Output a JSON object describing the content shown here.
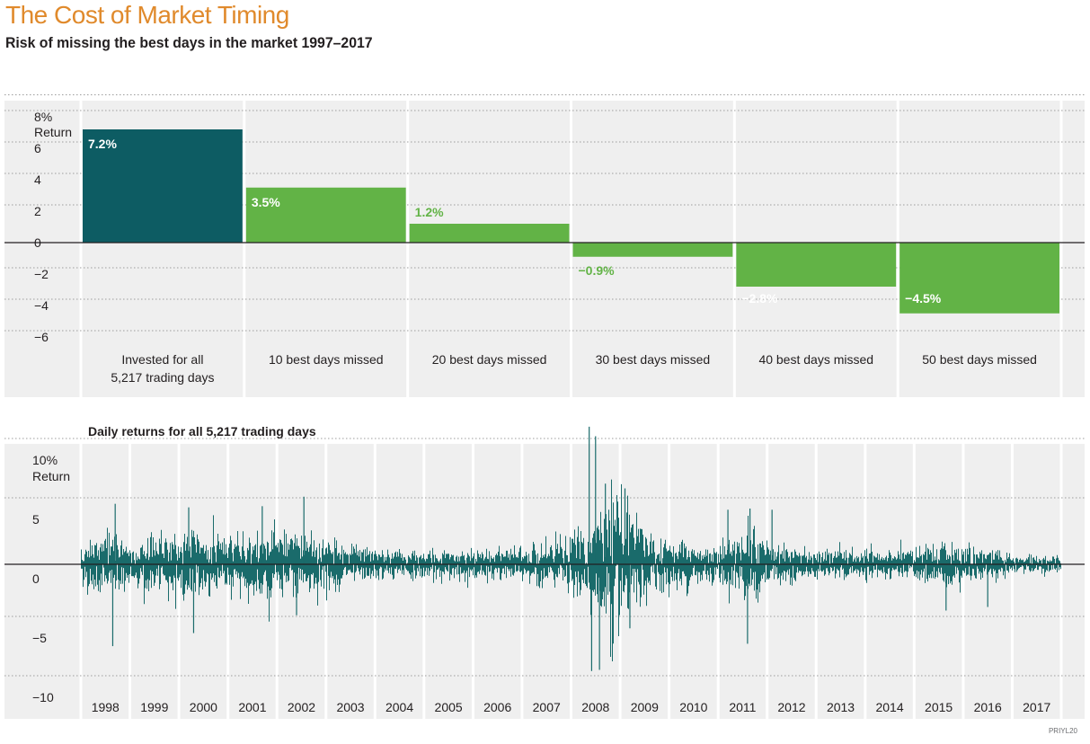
{
  "header": {
    "title": "The Cost of Market Timing",
    "subtitle": "Risk of missing the best days in the market 1997–2017",
    "code": "PRIYL20"
  },
  "colors": {
    "background_panel": "#efefef",
    "dark_bar": "#0d5c63",
    "green_bar": "#62b346",
    "daily_series": "#1a6b6b",
    "title_orange": "#e08a2c"
  },
  "chart_data": [
    {
      "type": "bar",
      "title": "",
      "ylabel": "Return",
      "ylim": [
        -6,
        8
      ],
      "yticks": [
        {
          "value": 8,
          "label": "8%"
        },
        {
          "value": 6,
          "label": "6"
        },
        {
          "value": 4,
          "label": "4"
        },
        {
          "value": 2,
          "label": "2"
        },
        {
          "value": 0,
          "label": "0"
        },
        {
          "value": -2,
          "label": "−2"
        },
        {
          "value": -4,
          "label": "−4"
        },
        {
          "value": -6,
          "label": "−6"
        }
      ],
      "grid": true,
      "categories": [
        [
          "Invested for all",
          "5,217 trading days"
        ],
        [
          "10 best days missed"
        ],
        [
          "20 best days missed"
        ],
        [
          "30 best days missed"
        ],
        [
          "40 best days missed"
        ],
        [
          "50 best days missed"
        ]
      ],
      "values": [
        7.2,
        3.5,
        1.2,
        -0.9,
        -2.8,
        -4.5
      ],
      "value_labels": [
        "7.2%",
        "3.5%",
        "1.2%",
        "−0.9%",
        "−2.8%",
        "−4.5%"
      ]
    },
    {
      "type": "bar",
      "title": "Daily returns for all 5,217 trading days",
      "ylabel": "Return",
      "ylim": [
        -10,
        10
      ],
      "yticks": [
        {
          "value": 10,
          "label": "10%"
        },
        {
          "value": 5,
          "label": "5"
        },
        {
          "value": 0,
          "label": "0"
        },
        {
          "value": -5,
          "label": "−5"
        },
        {
          "value": -10,
          "label": "−10"
        }
      ],
      "grid": true,
      "x_range": [
        1998,
        2018
      ],
      "x_tick_labels": [
        "1998",
        "1999",
        "2000",
        "2001",
        "2002",
        "2003",
        "2004",
        "2005",
        "2006",
        "2007",
        "2008",
        "2009",
        "2010",
        "2011",
        "2012",
        "2013",
        "2014",
        "2015",
        "2016",
        "2017"
      ],
      "volatility_profile": [
        {
          "year": 1998.0,
          "vol": 1.2
        },
        {
          "year": 1998.6,
          "vol": 1.7
        },
        {
          "year": 1999.0,
          "vol": 1.2
        },
        {
          "year": 2000.0,
          "vol": 1.5
        },
        {
          "year": 2000.5,
          "vol": 1.8
        },
        {
          "year": 2001.0,
          "vol": 1.5
        },
        {
          "year": 2001.7,
          "vol": 1.6
        },
        {
          "year": 2002.0,
          "vol": 1.6
        },
        {
          "year": 2002.6,
          "vol": 1.9
        },
        {
          "year": 2003.0,
          "vol": 1.4
        },
        {
          "year": 2003.5,
          "vol": 1.0
        },
        {
          "year": 2004.0,
          "vol": 0.8
        },
        {
          "year": 2005.0,
          "vol": 0.7
        },
        {
          "year": 2006.0,
          "vol": 0.7
        },
        {
          "year": 2007.0,
          "vol": 0.8
        },
        {
          "year": 2007.5,
          "vol": 1.1
        },
        {
          "year": 2008.0,
          "vol": 1.5
        },
        {
          "year": 2008.5,
          "vol": 2.0
        },
        {
          "year": 2008.8,
          "vol": 4.5
        },
        {
          "year": 2009.0,
          "vol": 3.2
        },
        {
          "year": 2009.4,
          "vol": 2.0
        },
        {
          "year": 2010.0,
          "vol": 1.1
        },
        {
          "year": 2010.4,
          "vol": 1.4
        },
        {
          "year": 2010.7,
          "vol": 1.0
        },
        {
          "year": 2011.0,
          "vol": 0.9
        },
        {
          "year": 2011.6,
          "vol": 2.0
        },
        {
          "year": 2012.0,
          "vol": 1.2
        },
        {
          "year": 2012.5,
          "vol": 0.8
        },
        {
          "year": 2013.0,
          "vol": 0.7
        },
        {
          "year": 2014.0,
          "vol": 0.7
        },
        {
          "year": 2015.0,
          "vol": 0.8
        },
        {
          "year": 2015.6,
          "vol": 1.2
        },
        {
          "year": 2016.0,
          "vol": 1.0
        },
        {
          "year": 2016.5,
          "vol": 0.8
        },
        {
          "year": 2017.0,
          "vol": 0.45
        },
        {
          "year": 2018.0,
          "vol": 0.45
        }
      ],
      "notable_extremes": [
        {
          "year": 1998.65,
          "value": -6.9
        },
        {
          "year": 1998.7,
          "value": 5.1
        },
        {
          "year": 2000.2,
          "value": 4.8
        },
        {
          "year": 2000.3,
          "value": -5.8
        },
        {
          "year": 2001.7,
          "value": 4.9
        },
        {
          "year": 2002.55,
          "value": 5.7
        },
        {
          "year": 2002.4,
          "value": -4.3
        },
        {
          "year": 2008.37,
          "value": 11.6
        },
        {
          "year": 2008.42,
          "value": -9.0
        },
        {
          "year": 2008.5,
          "value": 10.8
        },
        {
          "year": 2008.58,
          "value": -8.9
        },
        {
          "year": 2008.7,
          "value": 6.8
        },
        {
          "year": 2009.1,
          "value": 6.4
        },
        {
          "year": 2009.2,
          "value": -5.4
        },
        {
          "year": 2011.2,
          "value": 4.6
        },
        {
          "year": 2011.6,
          "value": -6.7
        },
        {
          "year": 2011.65,
          "value": 4.7
        },
        {
          "year": 2012.1,
          "value": 4.6
        },
        {
          "year": 2015.65,
          "value": -3.9
        },
        {
          "year": 2016.5,
          "value": -3.6
        }
      ]
    }
  ]
}
